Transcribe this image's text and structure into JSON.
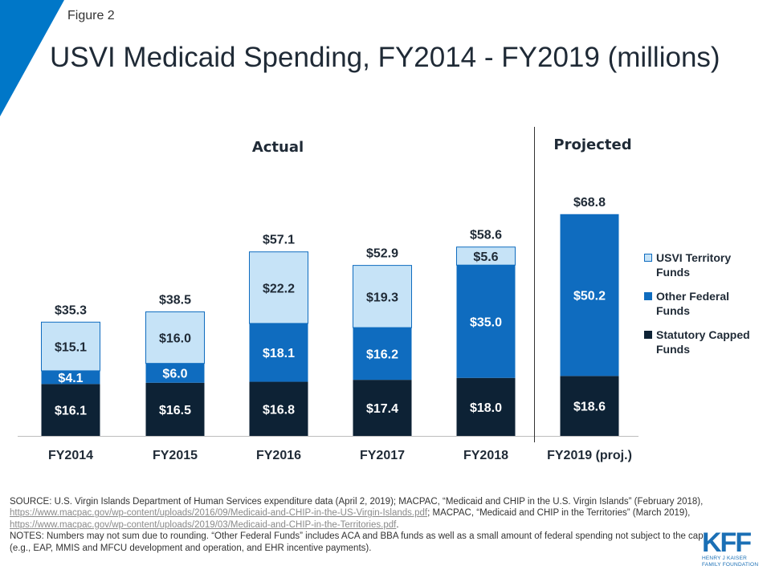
{
  "figure_label": "Figure 2",
  "title": "USVI Medicaid Spending, FY2014 - FY2019 (millions)",
  "colors": {
    "accent": "#0077c8",
    "territory": "#c6e3f7",
    "other_federal": "#0f6cbf",
    "statutory": "#0d2235",
    "divider": "#333333"
  },
  "chart_data": {
    "type": "bar",
    "stacked": true,
    "title": "USVI Medicaid Spending, FY2014 - FY2019 (millions)",
    "categories": [
      "FY2014",
      "FY2015",
      "FY2016",
      "FY2017",
      "FY2018",
      "FY2019 (proj.)"
    ],
    "series": [
      {
        "name": "Statutory Capped Funds",
        "color": "#0d2235",
        "values": [
          16.1,
          16.5,
          16.8,
          17.4,
          18.0,
          18.6
        ],
        "labels": [
          "$16.1",
          "$16.5",
          "$16.8",
          "$17.4",
          "$18.0",
          "$18.6"
        ]
      },
      {
        "name": "Other Federal Funds",
        "color": "#0f6cbf",
        "values": [
          4.1,
          6.0,
          18.1,
          16.2,
          35.0,
          50.2
        ],
        "labels": [
          "$4.1",
          "$6.0",
          "$18.1",
          "$16.2",
          "$35.0",
          "$50.2"
        ]
      },
      {
        "name": "USVI Territory Funds",
        "color": "#c6e3f7",
        "values": [
          15.1,
          16.0,
          22.2,
          19.3,
          5.6,
          null
        ],
        "labels": [
          "$15.1",
          "$16.0",
          "$22.2",
          "$19.3",
          "$5.6",
          null
        ]
      }
    ],
    "totals": [
      35.3,
      38.5,
      57.1,
      52.9,
      58.6,
      68.8
    ],
    "total_labels": [
      "$35.3",
      "$38.5",
      "$57.1",
      "$52.9",
      "$58.6",
      "$68.8"
    ],
    "section_labels": {
      "actual": "Actual",
      "projected": "Projected"
    },
    "ylim": [
      0,
      70
    ],
    "xlabel": "",
    "ylabel": "",
    "legend_position": "right",
    "legend_order": [
      "USVI Territory Funds",
      "Other Federal Funds",
      "Statutory Capped Funds"
    ]
  },
  "legend": [
    {
      "label": "USVI Territory Funds",
      "color": "#c6e3f7"
    },
    {
      "label": "Other Federal Funds",
      "color": "#0f6cbf"
    },
    {
      "label": "Statutory Capped Funds",
      "color": "#0d2235"
    }
  ],
  "footer": {
    "source_1": "SOURCE: U.S. Virgin Islands Department of Human Services expenditure data (April 2, 2019); MACPAC, “Medicaid and CHIP in the U.S. Virgin Islands” (February 2018), ",
    "link_1": "https://www.macpac.gov/wp-content/uploads/2016/09/Medicaid-and-CHIP-in-the-US-Virgin-Islands.pdf",
    "source_2": "; MACPAC, “Medicaid and CHIP in the Territories” (March 2019), ",
    "link_2": "https://www.macpac.gov/wp-content/uploads/2019/03/Medicaid-and-CHIP-in-the-Territories.pdf",
    "source_3": ".",
    "notes": "NOTES: Numbers may not sum due to rounding. “Other Federal Funds” includes ACA and BBA funds as well as a small amount of federal spending not subject to the cap (e.g., EAP, MMIS and MFCU development and operation, and EHR incentive payments)."
  },
  "logo": {
    "mark": "KFF",
    "line1": "HENRY J KAISER",
    "line2": "FAMILY FOUNDATION"
  }
}
